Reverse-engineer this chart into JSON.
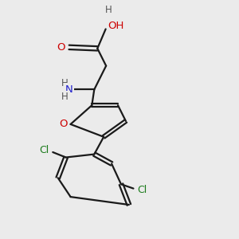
{
  "bg_color": "#ebebeb",
  "bond_color": "#1a1a1a",
  "oxygen_color": "#cc0000",
  "nitrogen_color": "#2222cc",
  "chlorine_color": "#1a7a1a",
  "hydrogen_color": "#555555",
  "figsize": [
    3.0,
    3.0
  ],
  "dpi": 100,
  "xlim": [
    0,
    10
  ],
  "ylim": [
    0,
    10
  ]
}
